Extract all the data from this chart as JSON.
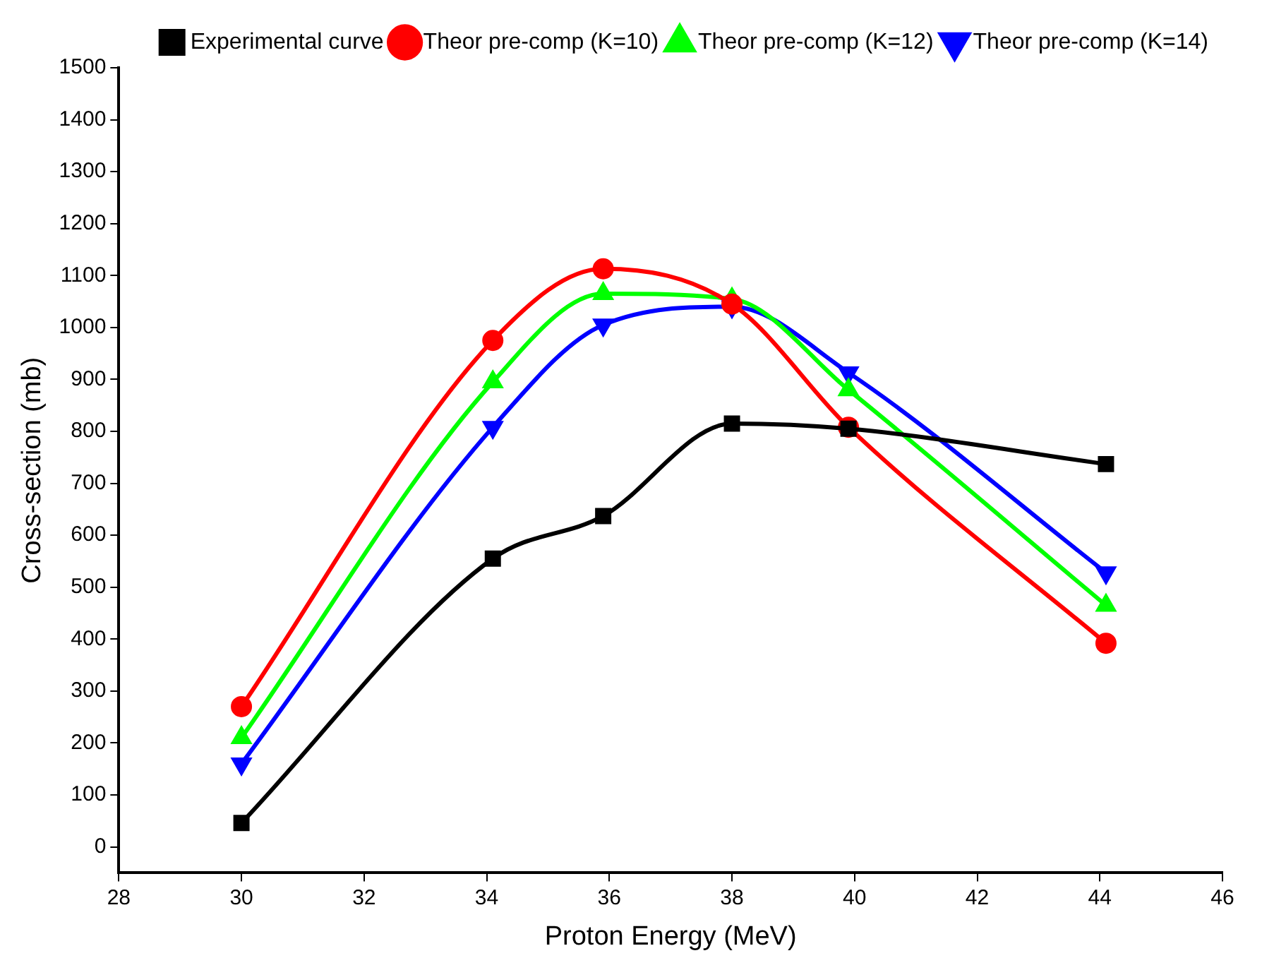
{
  "chart_data": {
    "type": "line",
    "xlabel": "Proton Energy (MeV)",
    "ylabel": "Cross-section (mb)",
    "x": [
      30,
      34.1,
      35.9,
      38,
      39.9,
      44.1
    ],
    "series": [
      {
        "name": "Experimental curve",
        "color": "#000000",
        "marker": "square",
        "values": [
          46,
          555,
          637,
          815,
          805,
          737
        ]
      },
      {
        "name": "Theor pre-comp (K=10)",
        "color": "#ff0000",
        "marker": "circle",
        "values": [
          270,
          975,
          1113,
          1045,
          808,
          392
        ]
      },
      {
        "name": "Theor pre-comp (K=12)",
        "color": "#00ff00",
        "marker": "triangle",
        "values": [
          210,
          895,
          1065,
          1055,
          880,
          465
        ]
      },
      {
        "name": "Theor pre-comp (K=14)",
        "color": "#0000ff",
        "marker": "triangle-down",
        "values": [
          160,
          808,
          1005,
          1040,
          913,
          528
        ]
      }
    ],
    "xlim": [
      28,
      46
    ],
    "xticks": [
      28,
      30,
      32,
      34,
      36,
      38,
      40,
      42,
      44,
      46
    ],
    "ylim": [
      -50,
      1500
    ],
    "yticks": [
      0,
      100,
      200,
      300,
      400,
      500,
      600,
      700,
      800,
      900,
      1000,
      1100,
      1200,
      1300,
      1400,
      1500
    ],
    "grid": false,
    "legend": "top right",
    "line_style": "solid"
  }
}
